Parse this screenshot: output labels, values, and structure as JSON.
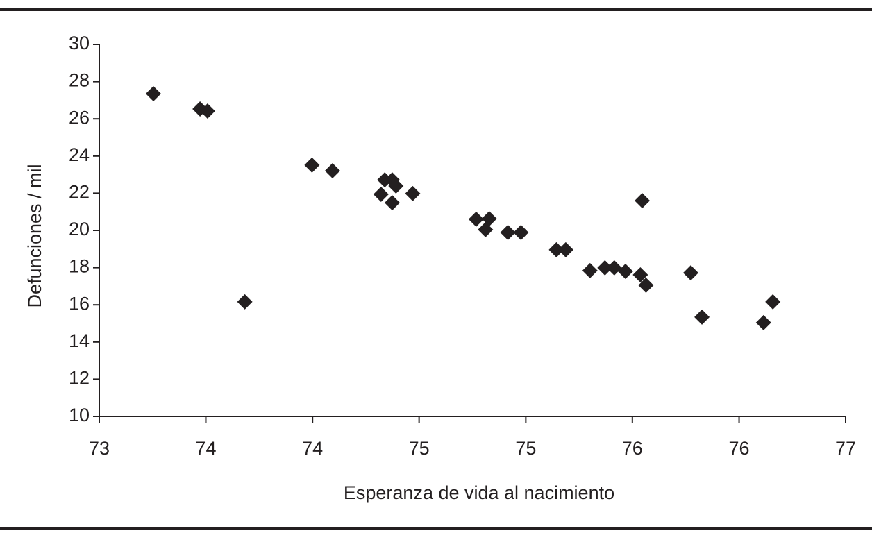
{
  "chart_data": {
    "type": "scatter",
    "xlabel": "Esperanza de vida al nacimiento",
    "ylabel": "Defunciones / mil",
    "color": "#231f20",
    "xlim": [
      73,
      77
    ],
    "xticks": [
      73,
      {
        "value": 73.571,
        "label": "74"
      },
      {
        "value": 74.143,
        "label": "74"
      },
      {
        "value": 74.714,
        "label": "75"
      },
      {
        "value": 75.286,
        "label": "75"
      },
      {
        "value": 75.857,
        "label": "76"
      },
      {
        "value": 76.429,
        "label": "76"
      },
      77
    ],
    "ylim": [
      10,
      30
    ],
    "yticks": [
      10,
      12,
      14,
      16,
      18,
      20,
      22,
      24,
      26,
      28,
      30
    ],
    "x": [
      73.29,
      73.54,
      73.58,
      73.78,
      74.14,
      74.25,
      74.53,
      74.57,
      74.59,
      74.51,
      74.57,
      74.68,
      75.02,
      75.09,
      75.07,
      75.19,
      75.26,
      75.45,
      75.5,
      75.63,
      75.71,
      75.76,
      75.82,
      75.9,
      75.93,
      75.91,
      76.17,
      76.23,
      76.56,
      76.61
    ],
    "values": [
      27.35,
      26.53,
      26.42,
      16.16,
      23.51,
      23.21,
      22.72,
      22.72,
      22.39,
      21.94,
      21.49,
      21.98,
      20.6,
      20.63,
      20.04,
      19.89,
      19.89,
      18.96,
      18.96,
      17.84,
      17.99,
      17.99,
      17.8,
      17.61,
      17.05,
      21.6,
      17.72,
      15.34,
      15.04,
      16.16
    ]
  }
}
